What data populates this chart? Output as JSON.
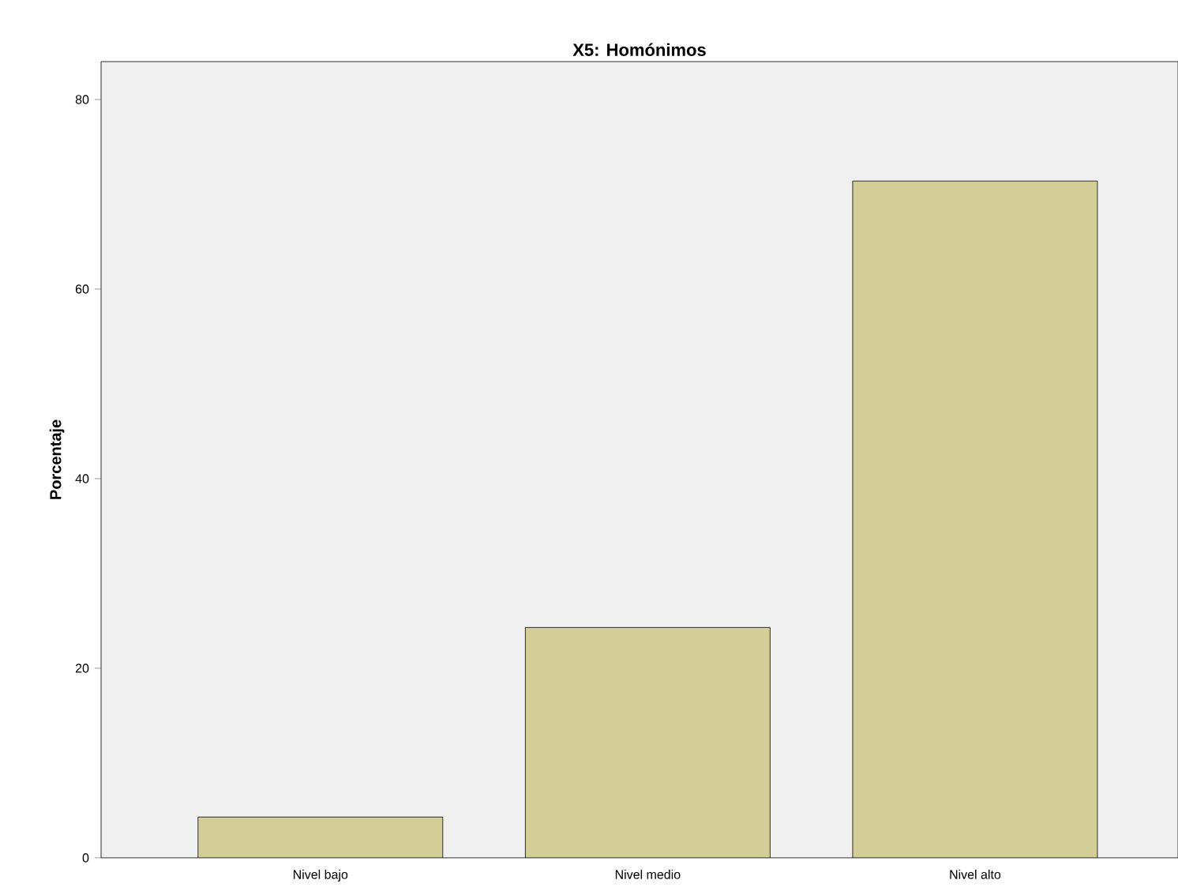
{
  "chart_data": {
    "type": "bar",
    "title": "X5: Homónimos",
    "ylabel": "Porcentaje",
    "categories": [
      "Nivel bajo",
      "Nivel medio",
      "Nivel alto"
    ],
    "values": [
      4.3,
      24.3,
      71.4
    ],
    "color": "#d3ce97",
    "ylim": [
      0,
      84
    ],
    "yticks": [
      0,
      20,
      40,
      60,
      80
    ],
    "grid": false
  }
}
